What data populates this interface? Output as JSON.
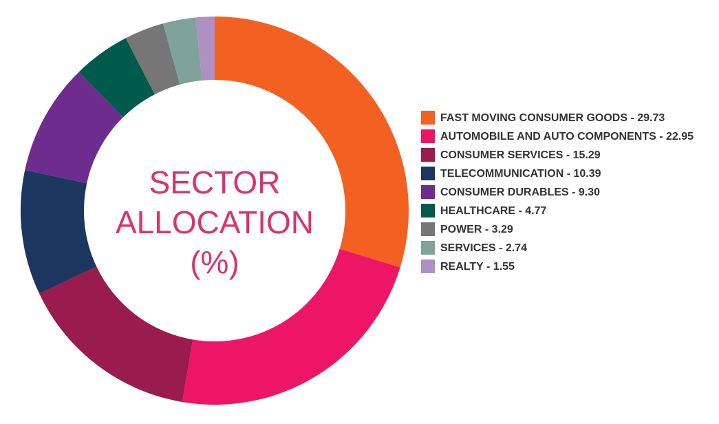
{
  "chart_data": {
    "type": "donut",
    "title": "SECTOR ALLOCATION (%)",
    "categories": [
      "FAST MOVING CONSUMER GOODS",
      "AUTOMOBILE AND AUTO COMPONENTS",
      "CONSUMER SERVICES",
      "TELECOMMUNICATION",
      "CONSUMER DURABLES",
      "HEALTHCARE",
      "POWER",
      "SERVICES",
      "REALTY"
    ],
    "values": [
      29.73,
      22.95,
      15.29,
      10.39,
      9.3,
      4.77,
      3.29,
      2.74,
      1.55
    ],
    "value_labels": [
      "29.73",
      "22.95",
      "15.29",
      "10.39",
      "9.30",
      "4.77",
      "3.29",
      "2.74",
      "1.55"
    ],
    "label_separator": " - ",
    "colors": [
      "#f26122",
      "#ec1566",
      "#9a1b4e",
      "#1c3660",
      "#6e2c8f",
      "#005b4c",
      "#767676",
      "#7fa39b",
      "#b08fc3"
    ],
    "legend": "right"
  }
}
